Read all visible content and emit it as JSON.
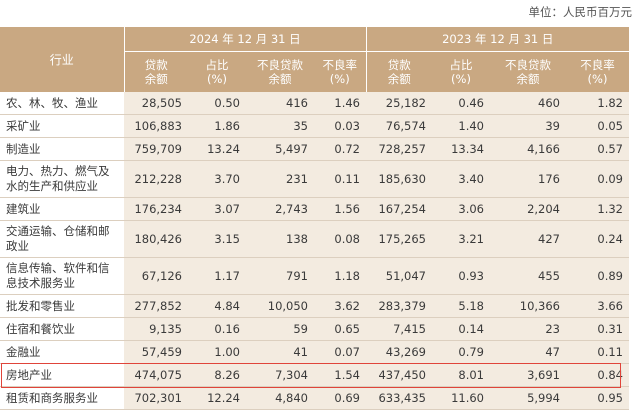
{
  "unit": "单位：人民币百万元",
  "header": {
    "industry": "行业",
    "year_2024": "2024 年 12 月 31 日",
    "year_2023": "2023 年 12 月 31 日",
    "cols": {
      "loan_a": "贷款",
      "loan_b": "余额",
      "share_a": "占比",
      "share_b": "(%)",
      "npl_a": "不良贷款",
      "npl_b": "余额",
      "ratio_a": "不良率",
      "ratio_b": "(%)"
    }
  },
  "rows": [
    {
      "name": "农、林、牧、渔业",
      "v": [
        "28,505",
        "0.50",
        "416",
        "1.46",
        "25,182",
        "0.46",
        "460",
        "1.82"
      ]
    },
    {
      "name": "采矿业",
      "v": [
        "106,883",
        "1.86",
        "35",
        "0.03",
        "76,574",
        "1.40",
        "39",
        "0.05"
      ]
    },
    {
      "name": "制造业",
      "v": [
        "759,709",
        "13.24",
        "5,497",
        "0.72",
        "728,257",
        "13.34",
        "4,166",
        "0.57"
      ]
    },
    {
      "name": "电力、热力、燃气及水的生产和供应业",
      "v": [
        "212,228",
        "3.70",
        "231",
        "0.11",
        "185,630",
        "3.40",
        "176",
        "0.09"
      ]
    },
    {
      "name": "建筑业",
      "v": [
        "176,234",
        "3.07",
        "2,743",
        "1.56",
        "167,254",
        "3.06",
        "2,204",
        "1.32"
      ]
    },
    {
      "name": "交通运输、仓储和邮政业",
      "v": [
        "180,426",
        "3.15",
        "138",
        "0.08",
        "175,265",
        "3.21",
        "427",
        "0.24"
      ]
    },
    {
      "name": "信息传输、软件和信息技术服务业",
      "v": [
        "67,126",
        "1.17",
        "791",
        "1.18",
        "51,047",
        "0.93",
        "455",
        "0.89"
      ]
    },
    {
      "name": "批发和零售业",
      "v": [
        "277,852",
        "4.84",
        "10,050",
        "3.62",
        "283,379",
        "5.18",
        "10,366",
        "3.66"
      ]
    },
    {
      "name": "住宿和餐饮业",
      "v": [
        "9,135",
        "0.16",
        "59",
        "0.65",
        "7,415",
        "0.14",
        "23",
        "0.31"
      ]
    },
    {
      "name": "金融业",
      "v": [
        "57,459",
        "1.00",
        "41",
        "0.07",
        "43,269",
        "0.79",
        "47",
        "0.11"
      ]
    },
    {
      "name": "房地产业",
      "v": [
        "474,075",
        "8.26",
        "7,304",
        "1.54",
        "437,450",
        "8.01",
        "3,691",
        "0.84"
      ]
    },
    {
      "name": "租赁和商务服务业",
      "v": [
        "702,301",
        "12.24",
        "4,840",
        "0.69",
        "633,435",
        "11.60",
        "5,994",
        "0.95"
      ]
    }
  ],
  "highlight_color": "#e0443a",
  "header_color": "#c9a882",
  "value_bg_color": "#f3ebe0"
}
